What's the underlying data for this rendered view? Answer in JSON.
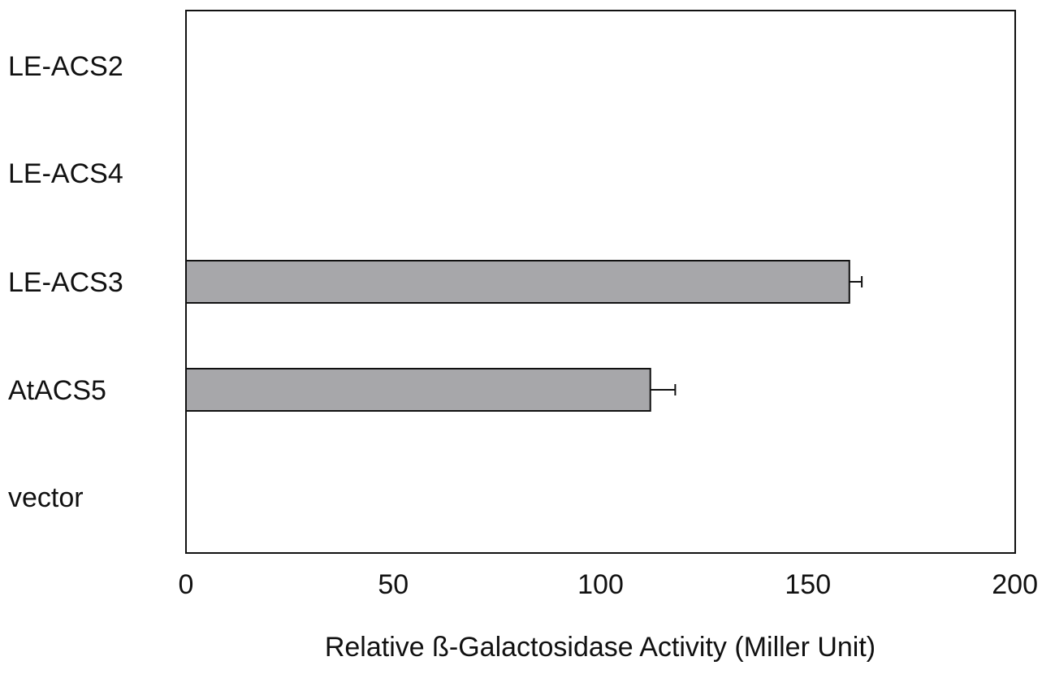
{
  "chart_data": {
    "type": "bar",
    "orientation": "horizontal",
    "categories": [
      "LE-ACS2",
      "LE-ACS4",
      "LE-ACS3",
      "AtACS5",
      "vector"
    ],
    "values": [
      0,
      0,
      160,
      112,
      0
    ],
    "errors": [
      0,
      0,
      3,
      6,
      0
    ],
    "xlabel": "Relative ß-Galactosidase Activity (Miller Unit)",
    "ylabel": "",
    "title": "",
    "xlim": [
      0,
      200
    ],
    "xticks": [
      "0",
      "50",
      "100",
      "150",
      "200"
    ],
    "grid": false,
    "legend": "none",
    "colors": {
      "bar_fill": "#a7a7aa",
      "bar_stroke": "#111111",
      "axis": "#111111",
      "text": "#111111"
    }
  }
}
